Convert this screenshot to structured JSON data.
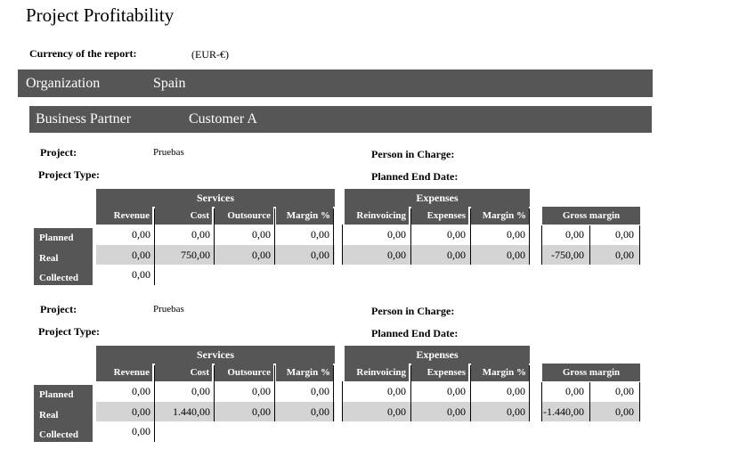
{
  "title": "Project Profitability",
  "currency": {
    "label": "Currency of the report:",
    "value": "(EUR-€)"
  },
  "organization": {
    "label": "Organization",
    "value": "Spain"
  },
  "business_partner": {
    "label": "Business Partner",
    "value": "Customer A"
  },
  "field_labels": {
    "project": "Project:",
    "project_type": "Project Type:",
    "person_in_charge": "Person in Charge:",
    "planned_end_date": "Planned End Date:"
  },
  "headers": {
    "services": {
      "group": "Services",
      "cols": [
        "Revenue",
        "Cost",
        "Outsource",
        "Margin %"
      ]
    },
    "expenses": {
      "group": "Expenses",
      "cols": [
        "Reinvoicing",
        "Expenses",
        "Margin %"
      ]
    },
    "gross_margin": {
      "group": "Gross margin"
    }
  },
  "row_labels": [
    "Planned",
    "Real",
    "Collected"
  ],
  "colors": {
    "header_bg": "#565656",
    "real_row_bg": "#d4d4d4"
  },
  "projects": [
    {
      "project": "Pruebas",
      "project_type": "",
      "person_in_charge": "",
      "planned_end_date": "",
      "planned": {
        "services": [
          "0,00",
          "0,00",
          "0,00",
          "0,00"
        ],
        "expenses": [
          "0,00",
          "0,00",
          "0,00"
        ],
        "gross_margin": [
          "0,00",
          "0,00"
        ]
      },
      "real": {
        "services": [
          "0,00",
          "750,00",
          "0,00",
          "0,00"
        ],
        "expenses": [
          "0,00",
          "0,00",
          "0,00"
        ],
        "gross_margin": [
          "-750,00",
          "0,00"
        ]
      },
      "collected": {
        "revenue": "0,00"
      }
    },
    {
      "project": "Pruebas",
      "project_type": "",
      "person_in_charge": "",
      "planned_end_date": "",
      "planned": {
        "services": [
          "0,00",
          "0,00",
          "0,00",
          "0,00"
        ],
        "expenses": [
          "0,00",
          "0,00",
          "0,00"
        ],
        "gross_margin": [
          "0,00",
          "0,00"
        ]
      },
      "real": {
        "services": [
          "0,00",
          "1.440,00",
          "0,00",
          "0,00"
        ],
        "expenses": [
          "0,00",
          "0,00",
          "0,00"
        ],
        "gross_margin": [
          "-1.440,00",
          "0,00"
        ]
      },
      "collected": {
        "revenue": "0,00"
      }
    }
  ]
}
